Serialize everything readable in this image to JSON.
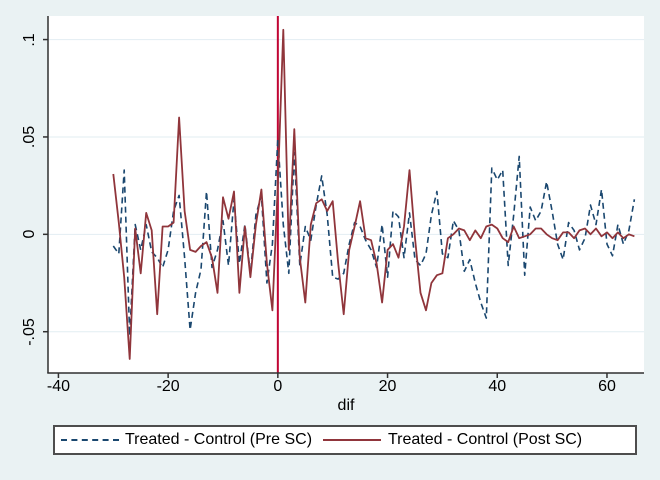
{
  "figure": {
    "background": "#eaf2f3"
  },
  "colors": {
    "background": "#eaf2f3",
    "plot_background": "#ffffff",
    "grid": "#e2edf2",
    "axis": "#303030",
    "text": "#000000",
    "vline": "#c10534",
    "pre_sc": "#1a476f",
    "post_sc": "#90353b",
    "legend_border": "#4d4d4d",
    "legend_background": "#ffffff"
  },
  "chart_data": {
    "type": "line",
    "title": "",
    "xlabel": "dif",
    "ylabel": "",
    "xlim": [
      -41.9,
      66.75
    ],
    "ylim": [
      -0.0712,
      0.1121
    ],
    "grid": "horizontal",
    "legend_position": "bottom",
    "x_ticks": [
      {
        "value": -40,
        "label": "-40"
      },
      {
        "value": -20,
        "label": "-20"
      },
      {
        "value": 0,
        "label": "0"
      },
      {
        "value": 20,
        "label": "20"
      },
      {
        "value": 40,
        "label": "40"
      },
      {
        "value": 60,
        "label": "60"
      }
    ],
    "y_ticks": [
      {
        "value": -0.05,
        "label": "-.05"
      },
      {
        "value": 0,
        "label": "0"
      },
      {
        "value": 0.05,
        "label": ".05"
      },
      {
        "value": 0.1,
        "label": ".1"
      }
    ],
    "vline": {
      "x": 0,
      "color": "#c10534"
    },
    "x": [
      -30,
      -29,
      -28,
      -27,
      -26,
      -25,
      -24,
      -23,
      -22,
      -21,
      -20,
      -19,
      -18,
      -17,
      -16,
      -15,
      -14,
      -13,
      -12,
      -11,
      -10,
      -9,
      -8,
      -7,
      -6,
      -5,
      -4,
      -3,
      -2,
      -1,
      0,
      1,
      2,
      3,
      4,
      5,
      6,
      7,
      8,
      9,
      10,
      11,
      12,
      13,
      14,
      15,
      16,
      17,
      18,
      19,
      20,
      21,
      22,
      23,
      24,
      25,
      26,
      27,
      28,
      29,
      30,
      31,
      32,
      33,
      34,
      35,
      36,
      37,
      38,
      39,
      40,
      41,
      42,
      43,
      44,
      45,
      46,
      47,
      48,
      49,
      50,
      51,
      52,
      53,
      54,
      55,
      56,
      57,
      58,
      59,
      60,
      61,
      62,
      63,
      64,
      65
    ],
    "series": [
      {
        "id": "pre-sc",
        "name": "Treated - Control (Pre SC)",
        "color": "#1a476f",
        "style": "dashed",
        "values": [
          -0.006,
          -0.01,
          0.033,
          -0.052,
          0.005,
          -0.008,
          0.005,
          -0.009,
          -0.012,
          -0.017,
          -0.008,
          0.012,
          0.02,
          -0.012,
          -0.049,
          -0.03,
          -0.018,
          0.022,
          -0.017,
          -0.008,
          0.007,
          -0.016,
          0.018,
          -0.015,
          0.005,
          -0.02,
          0.01,
          0.02,
          -0.025,
          -0.005,
          0.049,
          0.005,
          -0.02,
          0.042,
          -0.016,
          0.004,
          -0.003,
          0.015,
          0.03,
          0.01,
          -0.022,
          -0.023,
          -0.02,
          -0.005,
          0.006,
          0.004,
          -0.003,
          -0.008,
          -0.017,
          0.005,
          -0.022,
          0.012,
          0.009,
          -0.012,
          0.011,
          -0.013,
          -0.016,
          -0.01,
          0.01,
          0.022,
          -0.01,
          -0.012,
          0.007,
          0.002,
          -0.019,
          -0.013,
          -0.025,
          -0.035,
          -0.043,
          0.034,
          0.028,
          0.033,
          -0.016,
          0.01,
          0.04,
          -0.021,
          0.014,
          0.007,
          0.012,
          0.027,
          0.012,
          -0.005,
          -0.013,
          0.006,
          0.002,
          -0.008,
          -0.002,
          0.015,
          0.005,
          0.023,
          -0.005,
          -0.011,
          0.005,
          -0.005,
          0.002,
          0.018
        ]
      },
      {
        "id": "post-sc",
        "name": "Treated - Control (Post SC)",
        "color": "#90353b",
        "style": "solid",
        "values": [
          0.031,
          0.006,
          -0.022,
          -0.064,
          0.003,
          -0.02,
          0.011,
          0.002,
          -0.041,
          0.004,
          0.004,
          0.006,
          0.06,
          0.012,
          -0.008,
          -0.009,
          -0.006,
          -0.004,
          -0.012,
          -0.03,
          0.019,
          0.008,
          0.022,
          -0.03,
          0.004,
          -0.022,
          0.005,
          0.023,
          -0.015,
          -0.039,
          0.025,
          0.105,
          -0.008,
          0.054,
          -0.012,
          -0.035,
          0.005,
          0.016,
          0.018,
          0.012,
          0.017,
          -0.015,
          -0.041,
          -0.008,
          0.004,
          0.017,
          -0.002,
          -0.003,
          -0.015,
          -0.035,
          -0.008,
          -0.005,
          -0.012,
          0.004,
          0.033,
          -0.002,
          -0.03,
          -0.039,
          -0.025,
          -0.021,
          -0.02,
          -0.002,
          0.0,
          0.003,
          0.002,
          -0.003,
          0.002,
          -0.002,
          0.004,
          0.005,
          0.003,
          -0.002,
          -0.004,
          0.004,
          -0.002,
          -0.001,
          0.0,
          0.003,
          0.003,
          0.0,
          -0.002,
          -0.003,
          0.001,
          0.001,
          -0.002,
          0.002,
          0.003,
          0.0,
          0.003,
          -0.001,
          0.001,
          -0.002,
          0.001,
          -0.002,
          0.0,
          -0.001
        ]
      }
    ]
  },
  "legend": {
    "items": [
      {
        "label": "Treated - Control (Pre SC)"
      },
      {
        "label": "Treated - Control (Post SC)"
      }
    ]
  }
}
